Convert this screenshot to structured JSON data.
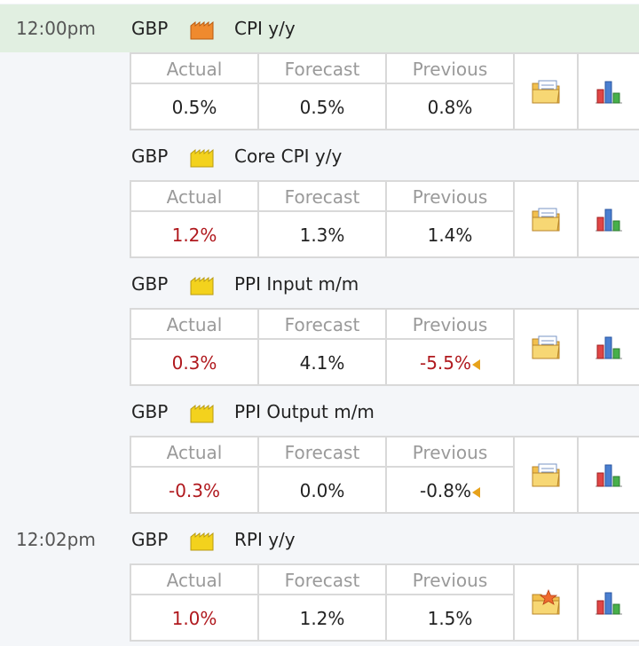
{
  "colors": {
    "highlight_bg": "#e1efe1",
    "negative": "#b0191e",
    "impact_high": "#ef8a2e",
    "impact_low": "#f3d21d"
  },
  "columns": {
    "actual": "Actual",
    "forecast": "Forecast",
    "previous": "Previous"
  },
  "events": [
    {
      "time": "12:00pm",
      "currency": "GBP",
      "impact": "high",
      "title": "CPI y/y",
      "actual": "0.5%",
      "forecast": "0.5%",
      "previous": "0.8%",
      "actual_negative": false,
      "previous_negative": false,
      "previous_revised": false,
      "detail_icon": "folder-icon"
    },
    {
      "time": "",
      "currency": "GBP",
      "impact": "low",
      "title": "Core CPI y/y",
      "actual": "1.2%",
      "forecast": "1.3%",
      "previous": "1.4%",
      "actual_negative": true,
      "previous_negative": false,
      "previous_revised": false,
      "detail_icon": "folder-icon"
    },
    {
      "time": "",
      "currency": "GBP",
      "impact": "low",
      "title": "PPI Input m/m",
      "actual": "0.3%",
      "forecast": "4.1%",
      "previous": "-5.5%",
      "actual_negative": true,
      "previous_negative": true,
      "previous_revised": true,
      "detail_icon": "folder-icon"
    },
    {
      "time": "",
      "currency": "GBP",
      "impact": "low",
      "title": "PPI Output m/m",
      "actual": "-0.3%",
      "forecast": "0.0%",
      "previous": "-0.8%",
      "actual_negative": true,
      "previous_negative": false,
      "previous_revised": true,
      "detail_icon": "folder-icon"
    },
    {
      "time": "12:02pm",
      "currency": "GBP",
      "impact": "low",
      "title": "RPI y/y",
      "actual": "1.0%",
      "forecast": "1.2%",
      "previous": "1.5%",
      "actual_negative": true,
      "previous_negative": false,
      "previous_revised": false,
      "detail_icon": "folder-star-icon"
    }
  ]
}
